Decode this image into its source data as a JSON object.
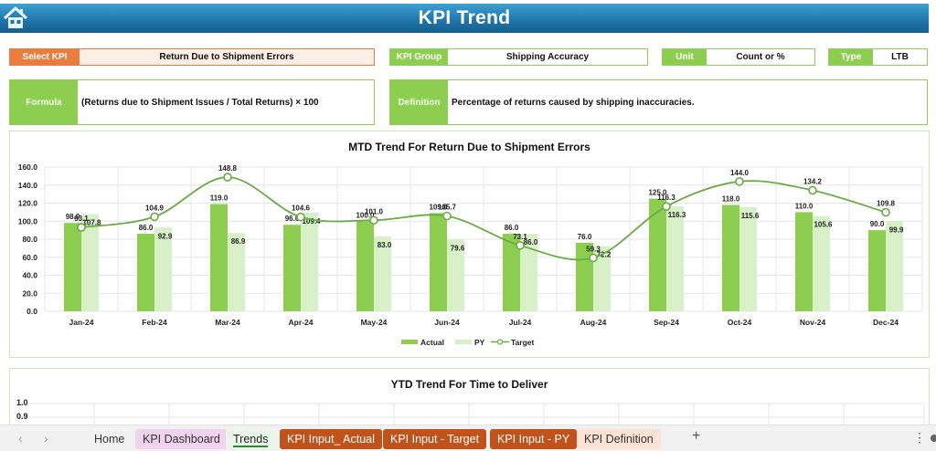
{
  "header": {
    "title": "KPI Trend",
    "home_icon": "home-icon"
  },
  "kpi_info": {
    "select_kpi": {
      "label": "Select KPI",
      "value": "Return Due to Shipment Errors"
    },
    "kpi_group": {
      "label": "KPI Group",
      "value": "Shipping Accuracy"
    },
    "unit": {
      "label": "Unit",
      "value": "Count or %"
    },
    "type": {
      "label": "Type",
      "value": "LTB"
    },
    "formula": {
      "label": "Formula",
      "value": "(Returns due to Shipment Issues / Total Returns) × 100"
    },
    "definition": {
      "label": "Definition",
      "value": "Percentage of returns caused by shipping inaccuracies."
    }
  },
  "colors": {
    "header": "#1f74a8",
    "accent_green": "#8dcd50",
    "accent_orange": "#ea7c3e",
    "actual_bar": "#8dcd50",
    "py_bar": "#d8f0c8",
    "target_line": "#6aab45",
    "tab_brown": "#c0531b"
  },
  "chart_data": [
    {
      "type": "bar",
      "title": "MTD Trend For Return Due to Shipment Errors",
      "categories": [
        "Jan-24",
        "Feb-24",
        "Mar-24",
        "Apr-24",
        "May-24",
        "Jun-24",
        "Jul-24",
        "Aug-24",
        "Sep-24",
        "Oct-24",
        "Nov-24",
        "Dec-24"
      ],
      "series": [
        {
          "name": "Actual",
          "kind": "bar",
          "values": [
            98.0,
            86.0,
            119.0,
            96.0,
            100.0,
            109.0,
            86.0,
            76.0,
            125.0,
            118.0,
            110.0,
            90.0
          ]
        },
        {
          "name": "PY",
          "kind": "bar",
          "values": [
            107.8,
            92.9,
            86.9,
            109.4,
            83.0,
            79.6,
            86.0,
            72.2,
            116.3,
            115.6,
            105.6,
            99.9
          ]
        },
        {
          "name": "Target",
          "kind": "line",
          "values": [
            93.1,
            104.9,
            148.8,
            104.6,
            101.0,
            105.7,
            73.1,
            59.3,
            116.3,
            144.0,
            134.2,
            109.8
          ]
        }
      ],
      "yticks": [
        "0.0",
        "20.0",
        "40.0",
        "60.0",
        "80.0",
        "100.0",
        "120.0",
        "140.0",
        "160.0"
      ],
      "ylim": [
        0,
        160
      ],
      "xlabel": "",
      "ylabel": "",
      "grid": true,
      "legend": {
        "position": "bottom",
        "entries": [
          "Actual",
          "PY",
          "Target"
        ]
      }
    },
    {
      "type": "bar",
      "title": "YTD Trend For Time to Deliver",
      "yticks_visible": [
        "1.0",
        "0.9"
      ],
      "grid": true
    }
  ],
  "tabs": {
    "items": [
      {
        "label": "Home",
        "style": "plain"
      },
      {
        "label": "KPI Dashboard",
        "style": "pink"
      },
      {
        "label": "Trends",
        "style": "active"
      },
      {
        "label": "KPI Input_ Actual",
        "style": "brown"
      },
      {
        "label": "KPI Input - Target",
        "style": "brown"
      },
      {
        "label": "KPI Input - PY",
        "style": "brown"
      },
      {
        "label": "KPI Definition",
        "style": "peach"
      }
    ],
    "add_label": "+",
    "prev_label": "‹",
    "next_label": "›",
    "more_label": "⋮"
  }
}
